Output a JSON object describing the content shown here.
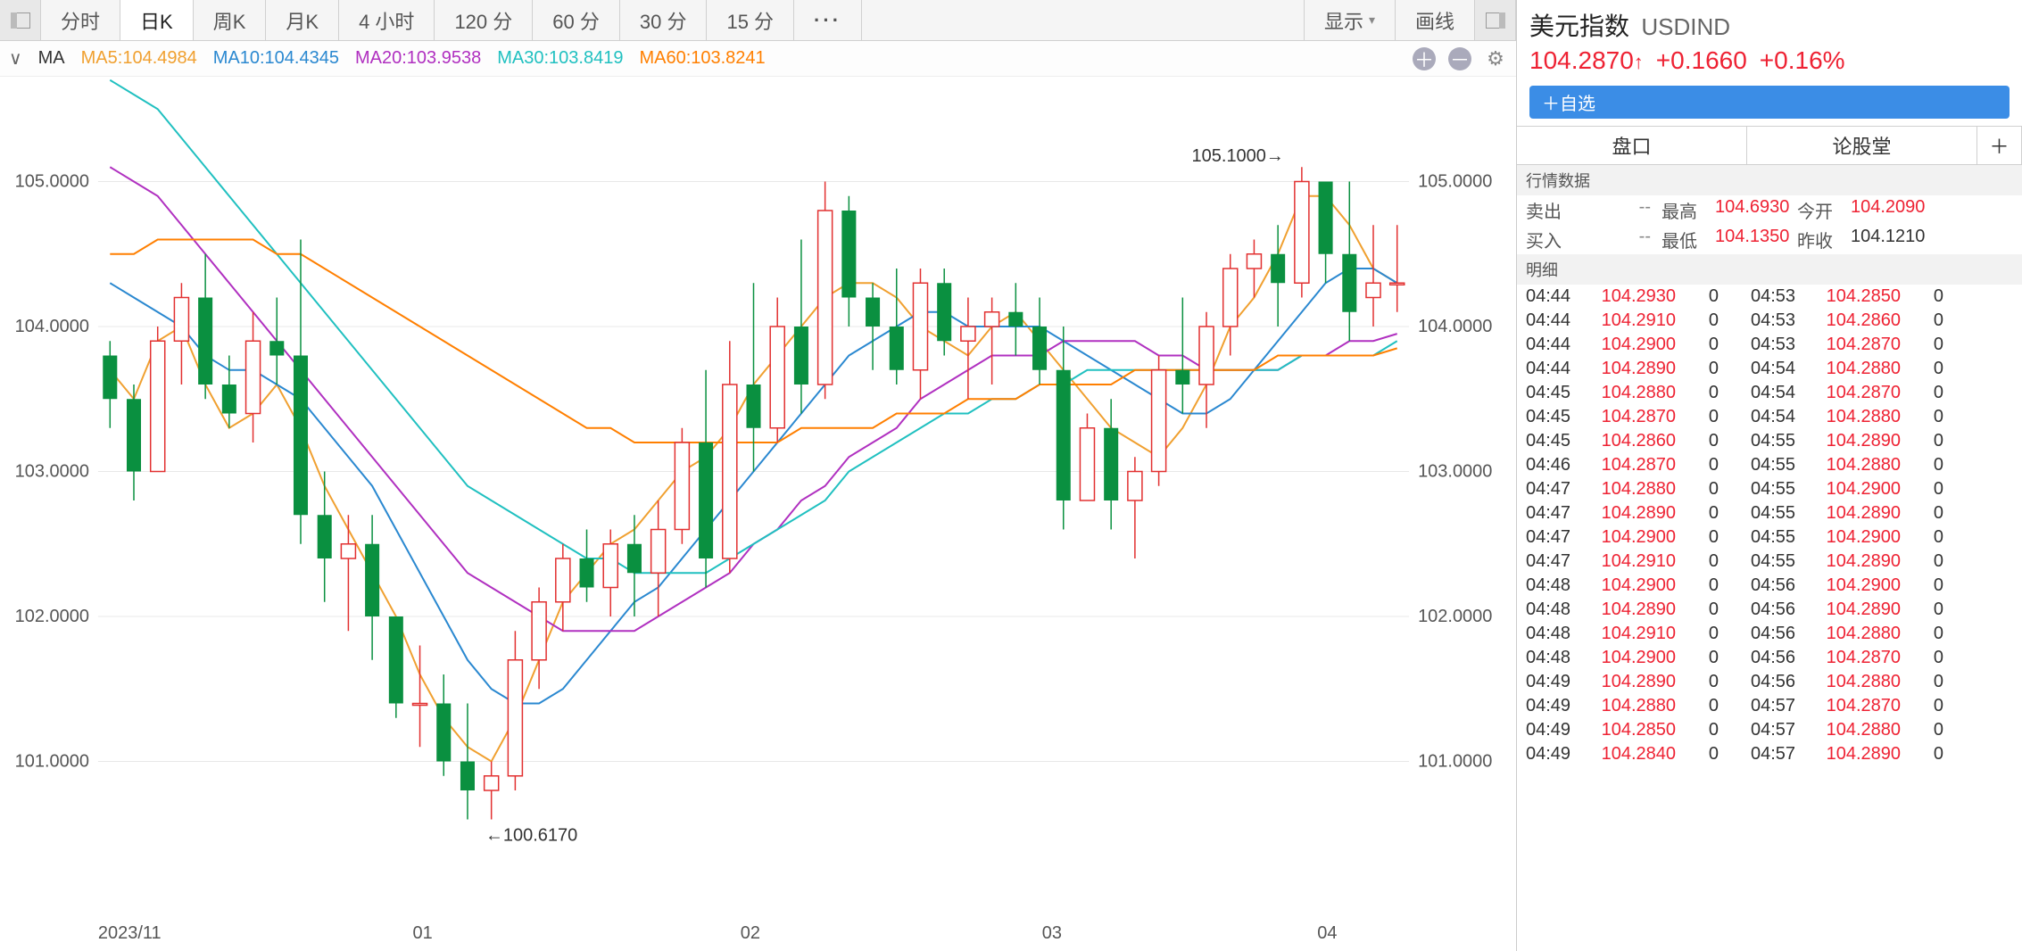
{
  "toolbar": {
    "timeframes": [
      "分时",
      "日K",
      "周K",
      "月K",
      "4 小时",
      "120 分",
      "60 分",
      "30 分",
      "15 分"
    ],
    "active_index": 1,
    "more": "···",
    "display_label": "显示",
    "drawline_label": "画线"
  },
  "ma": {
    "label": "MA",
    "items": [
      {
        "text": "MA5:104.4984",
        "color": "#f0a030"
      },
      {
        "text": "MA10:104.4345",
        "color": "#2a88d0"
      },
      {
        "text": "MA20:103.9538",
        "color": "#b030c0"
      },
      {
        "text": "MA30:103.8419",
        "color": "#20c0c0"
      },
      {
        "text": "MA60:103.8241",
        "color": "#ff7f00"
      }
    ]
  },
  "chart": {
    "ymin": 100.0,
    "ymax": 105.6,
    "yticks": [
      101.0,
      102.0,
      103.0,
      104.0,
      105.0
    ],
    "grid_color": "#e8e8e8",
    "axis_font": "20px",
    "xlabels": [
      "2023/11",
      "01",
      "02",
      "03",
      "04"
    ],
    "xpositions": [
      0.0,
      0.24,
      0.49,
      0.72,
      0.93
    ],
    "high_label": "105.1000",
    "low_label": "100.6170",
    "up_color": "#e23030",
    "down_color": "#0a9040",
    "ma_lines": {
      "ma5": {
        "color": "#f0a030",
        "points": [
          103.7,
          103.5,
          103.9,
          104.0,
          103.6,
          103.3,
          103.4,
          103.6,
          103.3,
          102.9,
          102.6,
          102.3,
          102.0,
          101.6,
          101.3,
          101.1,
          101.0,
          101.3,
          101.7,
          102.1,
          102.3,
          102.5,
          102.6,
          102.8,
          103.0,
          103.1,
          103.3,
          103.6,
          103.8,
          104.0,
          104.2,
          104.3,
          104.3,
          104.2,
          104.0,
          103.9,
          103.8,
          104.0,
          104.1,
          103.9,
          103.7,
          103.5,
          103.3,
          103.2,
          103.1,
          103.3,
          103.6,
          104.0,
          104.2,
          104.5,
          104.9,
          104.9,
          104.7,
          104.4,
          104.3
        ]
      },
      "ma10": {
        "color": "#2a88d0",
        "points": [
          104.3,
          104.2,
          104.1,
          104.0,
          103.8,
          103.7,
          103.7,
          103.6,
          103.5,
          103.3,
          103.1,
          102.9,
          102.6,
          102.3,
          102.0,
          101.7,
          101.5,
          101.4,
          101.4,
          101.5,
          101.7,
          101.9,
          102.1,
          102.2,
          102.4,
          102.6,
          102.8,
          103.0,
          103.2,
          103.4,
          103.6,
          103.8,
          103.9,
          104.0,
          104.1,
          104.1,
          104.0,
          104.0,
          104.0,
          104.0,
          103.9,
          103.8,
          103.7,
          103.6,
          103.5,
          103.4,
          103.4,
          103.5,
          103.7,
          103.9,
          104.1,
          104.3,
          104.4,
          104.4,
          104.3
        ]
      },
      "ma20": {
        "color": "#b030c0",
        "points": [
          105.1,
          105.0,
          104.9,
          104.7,
          104.5,
          104.3,
          104.1,
          103.9,
          103.7,
          103.5,
          103.3,
          103.1,
          102.9,
          102.7,
          102.5,
          102.3,
          102.2,
          102.1,
          102.0,
          101.9,
          101.9,
          101.9,
          101.9,
          102.0,
          102.1,
          102.2,
          102.3,
          102.5,
          102.6,
          102.8,
          102.9,
          103.1,
          103.2,
          103.3,
          103.5,
          103.6,
          103.7,
          103.8,
          103.8,
          103.8,
          103.9,
          103.9,
          103.9,
          103.9,
          103.8,
          103.8,
          103.7,
          103.7,
          103.7,
          103.7,
          103.8,
          103.8,
          103.9,
          103.9,
          103.95
        ]
      },
      "ma30": {
        "color": "#20c0c0",
        "points": [
          105.7,
          105.6,
          105.5,
          105.3,
          105.1,
          104.9,
          104.7,
          104.5,
          104.3,
          104.1,
          103.9,
          103.7,
          103.5,
          103.3,
          103.1,
          102.9,
          102.8,
          102.7,
          102.6,
          102.5,
          102.4,
          102.4,
          102.3,
          102.3,
          102.3,
          102.3,
          102.4,
          102.5,
          102.6,
          102.7,
          102.8,
          103.0,
          103.1,
          103.2,
          103.3,
          103.4,
          103.4,
          103.5,
          103.5,
          103.6,
          103.6,
          103.7,
          103.7,
          103.7,
          103.7,
          103.7,
          103.7,
          103.7,
          103.7,
          103.7,
          103.8,
          103.8,
          103.8,
          103.8,
          103.9
        ]
      },
      "ma60": {
        "color": "#ff7f00",
        "points": [
          104.5,
          104.5,
          104.6,
          104.6,
          104.6,
          104.6,
          104.6,
          104.5,
          104.5,
          104.4,
          104.3,
          104.2,
          104.1,
          104.0,
          103.9,
          103.8,
          103.7,
          103.6,
          103.5,
          103.4,
          103.3,
          103.3,
          103.2,
          103.2,
          103.2,
          103.2,
          103.2,
          103.2,
          103.2,
          103.3,
          103.3,
          103.3,
          103.3,
          103.4,
          103.4,
          103.4,
          103.5,
          103.5,
          103.5,
          103.6,
          103.6,
          103.6,
          103.6,
          103.7,
          103.7,
          103.7,
          103.7,
          103.7,
          103.7,
          103.8,
          103.8,
          103.8,
          103.8,
          103.8,
          103.85
        ]
      }
    },
    "candles": [
      {
        "o": 103.8,
        "h": 103.9,
        "l": 103.3,
        "c": 103.5
      },
      {
        "o": 103.5,
        "h": 103.6,
        "l": 102.8,
        "c": 103.0
      },
      {
        "o": 103.0,
        "h": 104.0,
        "l": 103.0,
        "c": 103.9
      },
      {
        "o": 103.9,
        "h": 104.3,
        "l": 103.6,
        "c": 104.2
      },
      {
        "o": 104.2,
        "h": 104.5,
        "l": 103.5,
        "c": 103.6
      },
      {
        "o": 103.6,
        "h": 103.8,
        "l": 103.3,
        "c": 103.4
      },
      {
        "o": 103.4,
        "h": 104.1,
        "l": 103.2,
        "c": 103.9
      },
      {
        "o": 103.9,
        "h": 104.2,
        "l": 103.6,
        "c": 103.8
      },
      {
        "o": 103.8,
        "h": 104.6,
        "l": 102.5,
        "c": 102.7
      },
      {
        "o": 102.7,
        "h": 103.0,
        "l": 102.1,
        "c": 102.4
      },
      {
        "o": 102.4,
        "h": 102.7,
        "l": 101.9,
        "c": 102.5
      },
      {
        "o": 102.5,
        "h": 102.7,
        "l": 101.7,
        "c": 102.0
      },
      {
        "o": 102.0,
        "h": 102.0,
        "l": 101.3,
        "c": 101.4
      },
      {
        "o": 101.4,
        "h": 101.8,
        "l": 101.1,
        "c": 101.4
      },
      {
        "o": 101.4,
        "h": 101.6,
        "l": 100.9,
        "c": 101.0
      },
      {
        "o": 101.0,
        "h": 101.4,
        "l": 100.6,
        "c": 100.8
      },
      {
        "o": 100.8,
        "h": 101.0,
        "l": 100.6,
        "c": 100.9
      },
      {
        "o": 100.9,
        "h": 101.9,
        "l": 100.8,
        "c": 101.7
      },
      {
        "o": 101.7,
        "h": 102.2,
        "l": 101.5,
        "c": 102.1
      },
      {
        "o": 102.1,
        "h": 102.5,
        "l": 101.9,
        "c": 102.4
      },
      {
        "o": 102.4,
        "h": 102.6,
        "l": 102.1,
        "c": 102.2
      },
      {
        "o": 102.2,
        "h": 102.6,
        "l": 102.0,
        "c": 102.5
      },
      {
        "o": 102.5,
        "h": 102.7,
        "l": 102.0,
        "c": 102.3
      },
      {
        "o": 102.3,
        "h": 102.8,
        "l": 102.0,
        "c": 102.6
      },
      {
        "o": 102.6,
        "h": 103.3,
        "l": 102.5,
        "c": 103.2
      },
      {
        "o": 103.2,
        "h": 103.7,
        "l": 102.2,
        "c": 102.4
      },
      {
        "o": 102.4,
        "h": 103.9,
        "l": 102.3,
        "c": 103.6
      },
      {
        "o": 103.6,
        "h": 104.3,
        "l": 103.0,
        "c": 103.3
      },
      {
        "o": 103.3,
        "h": 104.2,
        "l": 103.2,
        "c": 104.0
      },
      {
        "o": 104.0,
        "h": 104.6,
        "l": 103.4,
        "c": 103.6
      },
      {
        "o": 103.6,
        "h": 105.0,
        "l": 103.5,
        "c": 104.8
      },
      {
        "o": 104.8,
        "h": 104.9,
        "l": 104.0,
        "c": 104.2
      },
      {
        "o": 104.2,
        "h": 104.3,
        "l": 103.7,
        "c": 104.0
      },
      {
        "o": 104.0,
        "h": 104.4,
        "l": 103.6,
        "c": 103.7
      },
      {
        "o": 103.7,
        "h": 104.4,
        "l": 103.5,
        "c": 104.3
      },
      {
        "o": 104.3,
        "h": 104.4,
        "l": 103.8,
        "c": 103.9
      },
      {
        "o": 103.9,
        "h": 104.2,
        "l": 103.5,
        "c": 104.0
      },
      {
        "o": 104.0,
        "h": 104.2,
        "l": 103.6,
        "c": 104.1
      },
      {
        "o": 104.1,
        "h": 104.3,
        "l": 103.8,
        "c": 104.0
      },
      {
        "o": 104.0,
        "h": 104.2,
        "l": 103.6,
        "c": 103.7
      },
      {
        "o": 103.7,
        "h": 104.0,
        "l": 102.6,
        "c": 102.8
      },
      {
        "o": 102.8,
        "h": 103.4,
        "l": 102.8,
        "c": 103.3
      },
      {
        "o": 103.3,
        "h": 103.5,
        "l": 102.6,
        "c": 102.8
      },
      {
        "o": 102.8,
        "h": 103.1,
        "l": 102.4,
        "c": 103.0
      },
      {
        "o": 103.0,
        "h": 103.8,
        "l": 102.9,
        "c": 103.7
      },
      {
        "o": 103.7,
        "h": 104.2,
        "l": 103.4,
        "c": 103.6
      },
      {
        "o": 103.6,
        "h": 104.1,
        "l": 103.3,
        "c": 104.0
      },
      {
        "o": 104.0,
        "h": 104.5,
        "l": 103.8,
        "c": 104.4
      },
      {
        "o": 104.4,
        "h": 104.6,
        "l": 104.2,
        "c": 104.5
      },
      {
        "o": 104.5,
        "h": 104.7,
        "l": 104.0,
        "c": 104.3
      },
      {
        "o": 104.3,
        "h": 105.1,
        "l": 104.2,
        "c": 105.0
      },
      {
        "o": 105.0,
        "h": 105.0,
        "l": 104.3,
        "c": 104.5
      },
      {
        "o": 104.5,
        "h": 105.0,
        "l": 103.9,
        "c": 104.1
      },
      {
        "o": 104.2,
        "h": 104.7,
        "l": 104.0,
        "c": 104.3
      },
      {
        "o": 104.3,
        "h": 104.7,
        "l": 104.1,
        "c": 104.3
      }
    ]
  },
  "ticker": {
    "name": "美元指数",
    "code": "USDIND",
    "last": "104.2870",
    "arrow": "↑",
    "change": "+0.1660",
    "pct": "+0.16%",
    "add_fav": "＋自选"
  },
  "info_tabs": [
    "盘口",
    "论股堂"
  ],
  "section_hq": "行情数据",
  "hq": {
    "sell_lbl": "卖出",
    "sell": "--",
    "high_lbl": "最高",
    "high": "104.6930",
    "open_lbl": "今开",
    "open": "104.2090",
    "buy_lbl": "买入",
    "buy": "--",
    "low_lbl": "最低",
    "low": "104.1350",
    "prev_lbl": "昨收",
    "prev": "104.1210"
  },
  "section_mx": "明细",
  "ticks_left": [
    {
      "t": "04:44",
      "p": "104.2930",
      "v": "0"
    },
    {
      "t": "04:44",
      "p": "104.2910",
      "v": "0"
    },
    {
      "t": "04:44",
      "p": "104.2900",
      "v": "0"
    },
    {
      "t": "04:44",
      "p": "104.2890",
      "v": "0"
    },
    {
      "t": "04:45",
      "p": "104.2880",
      "v": "0"
    },
    {
      "t": "04:45",
      "p": "104.2870",
      "v": "0"
    },
    {
      "t": "04:45",
      "p": "104.2860",
      "v": "0"
    },
    {
      "t": "04:46",
      "p": "104.2870",
      "v": "0"
    },
    {
      "t": "04:47",
      "p": "104.2880",
      "v": "0"
    },
    {
      "t": "04:47",
      "p": "104.2890",
      "v": "0"
    },
    {
      "t": "04:47",
      "p": "104.2900",
      "v": "0"
    },
    {
      "t": "04:47",
      "p": "104.2910",
      "v": "0"
    },
    {
      "t": "04:48",
      "p": "104.2900",
      "v": "0"
    },
    {
      "t": "04:48",
      "p": "104.2890",
      "v": "0"
    },
    {
      "t": "04:48",
      "p": "104.2910",
      "v": "0"
    },
    {
      "t": "04:48",
      "p": "104.2900",
      "v": "0"
    },
    {
      "t": "04:49",
      "p": "104.2890",
      "v": "0"
    },
    {
      "t": "04:49",
      "p": "104.2880",
      "v": "0"
    },
    {
      "t": "04:49",
      "p": "104.2850",
      "v": "0"
    },
    {
      "t": "04:49",
      "p": "104.2840",
      "v": "0"
    }
  ],
  "ticks_right": [
    {
      "t": "04:53",
      "p": "104.2850",
      "v": "0"
    },
    {
      "t": "04:53",
      "p": "104.2860",
      "v": "0"
    },
    {
      "t": "04:53",
      "p": "104.2870",
      "v": "0"
    },
    {
      "t": "04:54",
      "p": "104.2880",
      "v": "0"
    },
    {
      "t": "04:54",
      "p": "104.2870",
      "v": "0"
    },
    {
      "t": "04:54",
      "p": "104.2880",
      "v": "0"
    },
    {
      "t": "04:55",
      "p": "104.2890",
      "v": "0"
    },
    {
      "t": "04:55",
      "p": "104.2880",
      "v": "0"
    },
    {
      "t": "04:55",
      "p": "104.2900",
      "v": "0"
    },
    {
      "t": "04:55",
      "p": "104.2890",
      "v": "0"
    },
    {
      "t": "04:55",
      "p": "104.2900",
      "v": "0"
    },
    {
      "t": "04:55",
      "p": "104.2890",
      "v": "0"
    },
    {
      "t": "04:56",
      "p": "104.2900",
      "v": "0"
    },
    {
      "t": "04:56",
      "p": "104.2890",
      "v": "0"
    },
    {
      "t": "04:56",
      "p": "104.2880",
      "v": "0"
    },
    {
      "t": "04:56",
      "p": "104.2870",
      "v": "0"
    },
    {
      "t": "04:56",
      "p": "104.2880",
      "v": "0"
    },
    {
      "t": "04:57",
      "p": "104.2870",
      "v": "0"
    },
    {
      "t": "04:57",
      "p": "104.2880",
      "v": "0"
    },
    {
      "t": "04:57",
      "p": "104.2890",
      "v": "0"
    }
  ]
}
